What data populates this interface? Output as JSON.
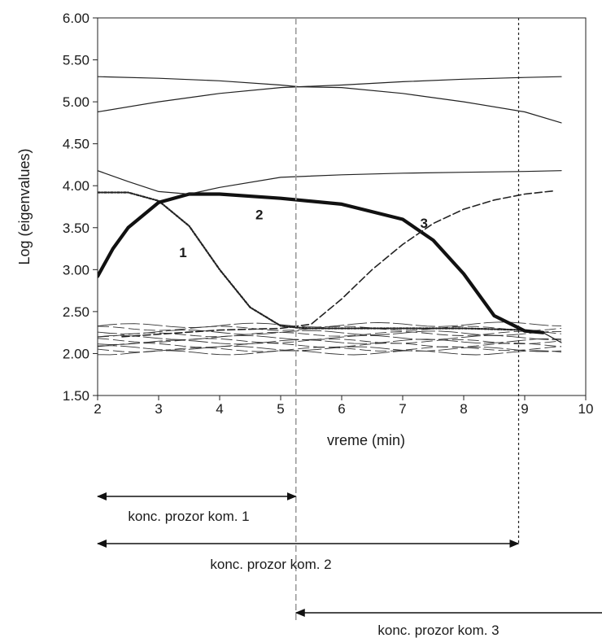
{
  "chart_data": {
    "type": "line",
    "xlabel": "vreme (min)",
    "ylabel": "Log (eigenvalues)",
    "xlim": [
      2,
      10
    ],
    "ylim": [
      1.5,
      6.0
    ],
    "x_ticks": [
      "2",
      "3",
      "4",
      "5",
      "6",
      "7",
      "8",
      "9",
      "10"
    ],
    "y_ticks": [
      "1.50",
      "2.00",
      "2.50",
      "3.00",
      "3.50",
      "4.00",
      "4.50",
      "5.00",
      "5.50",
      "6.00"
    ],
    "grid": false,
    "series": [
      {
        "name": "1",
        "style": "dash-dot",
        "x": [
          2,
          2.5,
          3,
          3.5,
          4,
          4.5,
          5,
          5.25,
          5.5,
          6,
          7,
          8,
          9
        ],
        "y": [
          3.92,
          3.92,
          3.82,
          3.52,
          3.0,
          2.55,
          2.33,
          2.31,
          2.3,
          2.3,
          2.3,
          2.3,
          2.28
        ]
      },
      {
        "name": "2",
        "style": "thick",
        "x": [
          2,
          2.25,
          2.5,
          3,
          3.5,
          4,
          5,
          6,
          7,
          7.5,
          8,
          8.5,
          9,
          9.3
        ],
        "y": [
          2.92,
          3.25,
          3.5,
          3.8,
          3.9,
          3.9,
          3.85,
          3.78,
          3.6,
          3.35,
          2.95,
          2.45,
          2.27,
          2.25
        ]
      },
      {
        "name": "3",
        "style": "dashed",
        "x": [
          2.4,
          3,
          4,
          5,
          5.5,
          6,
          6.5,
          7,
          7.5,
          8,
          8.5,
          9,
          9.5
        ],
        "y": [
          2.2,
          2.23,
          2.28,
          2.3,
          2.35,
          2.65,
          3.0,
          3.3,
          3.55,
          3.72,
          3.83,
          3.9,
          3.94
        ]
      },
      {
        "style": "thin",
        "x": [
          2,
          3,
          4,
          5,
          5.3,
          6,
          7,
          8,
          9,
          9.6
        ],
        "y": [
          5.3,
          5.28,
          5.25,
          5.2,
          5.18,
          5.17,
          5.1,
          5.0,
          4.88,
          4.75
        ]
      },
      {
        "style": "thin",
        "x": [
          2,
          3,
          4,
          5,
          5.3,
          6,
          7,
          8,
          9,
          9.6
        ],
        "y": [
          4.88,
          5.0,
          5.1,
          5.17,
          5.18,
          5.2,
          5.24,
          5.27,
          5.29,
          5.3
        ]
      },
      {
        "style": "thin",
        "x": [
          2,
          2.5,
          3,
          3.5,
          4,
          5,
          6,
          7,
          8,
          9,
          9.6
        ],
        "y": [
          4.18,
          4.05,
          3.93,
          3.9,
          3.98,
          4.1,
          4.13,
          4.15,
          4.16,
          4.17,
          4.18
        ]
      },
      {
        "style": "thin",
        "x": [
          9.3,
          9.6
        ],
        "y": [
          2.25,
          2.13
        ]
      }
    ],
    "noise_band": {
      "x_range": [
        2,
        9.6
      ],
      "levels": [
        2.33,
        2.3,
        2.26,
        2.22,
        2.19,
        2.16,
        2.13,
        2.1,
        2.07,
        2.04,
        2.01
      ]
    },
    "curve_labels": [
      {
        "text": "1",
        "x": 3.4,
        "y": 3.15
      },
      {
        "text": "2",
        "x": 4.65,
        "y": 3.6
      },
      {
        "text": "3",
        "x": 7.35,
        "y": 3.5
      }
    ],
    "reference_lines": [
      {
        "x": 5.25,
        "style": "dashed-grey"
      },
      {
        "x": 8.9,
        "style": "dotted-black"
      }
    ],
    "windows": [
      {
        "label": "konc. prozor kom. 1",
        "x_start": 2,
        "x_end": 5.25
      },
      {
        "label": "konc. prozor kom. 2",
        "x_start": 2,
        "x_end": 8.9
      },
      {
        "label": "konc. prozor kom. 3",
        "x_start": 5.25,
        "x_end": 10.8
      }
    ]
  }
}
